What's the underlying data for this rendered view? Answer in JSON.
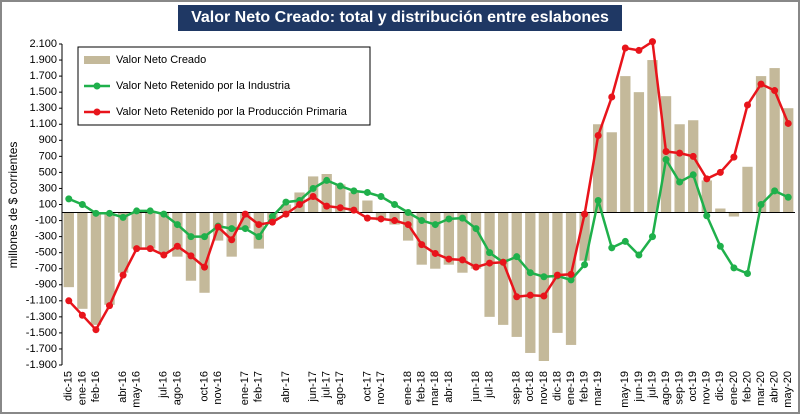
{
  "chart_data": {
    "type": "combo",
    "title": "Valor Neto Creado: total y distribución entre eslabones",
    "y_label": "millones de $ corrientes",
    "categories": [
      "dic-15",
      "ene-16",
      "feb-16",
      null,
      "abr-16",
      "may-16",
      null,
      "jul-16",
      "ago-16",
      null,
      "oct-16",
      "nov-16",
      null,
      "ene-17",
      "feb-17",
      null,
      "abr-17",
      null,
      "jun-17",
      "jul-17",
      "ago-17",
      null,
      "oct-17",
      "nov-17",
      null,
      "ene-18",
      "feb-18",
      "mar-18",
      "abr-18",
      null,
      "jun-18",
      "jul-18",
      null,
      "sep-18",
      "oct-18",
      "nov-18",
      "dic-18",
      "ene-19",
      "feb-19",
      "mar-19",
      null,
      "may-19",
      "jun-19",
      "jul-19",
      "ago-19",
      "sep-19",
      "oct-19",
      "nov-19",
      "dic-19",
      "ene-20",
      "feb-20",
      "mar-20",
      "abr-20",
      "may-20"
    ],
    "series": [
      {
        "name": "Valor Neto Creado",
        "type": "bar",
        "color": "#c4b99a",
        "values": [
          -930,
          -1200,
          -1400,
          -1150,
          -750,
          -450,
          -450,
          -500,
          -550,
          -850,
          -1000,
          -350,
          -550,
          -200,
          -450,
          -100,
          100,
          250,
          450,
          480,
          350,
          250,
          150,
          -100,
          -150,
          -350,
          -650,
          -700,
          -650,
          -750,
          -700,
          -1300,
          -1400,
          -1550,
          -1750,
          -1850,
          -1500,
          -1650,
          -600,
          1100,
          1000,
          1700,
          1500,
          1900,
          1450,
          1100,
          1150,
          400,
          50,
          -50,
          570,
          1700,
          1800,
          1300
        ]
      },
      {
        "name": "Valor Neto Retenido por la Industria",
        "type": "line",
        "color": "#1fb04b",
        "values": [
          170,
          100,
          -10,
          -10,
          -60,
          20,
          20,
          -20,
          -150,
          -300,
          -300,
          -170,
          -200,
          -200,
          -300,
          -50,
          130,
          150,
          300,
          400,
          330,
          270,
          250,
          200,
          100,
          0,
          -100,
          -150,
          -80,
          -70,
          -200,
          -500,
          -620,
          -550,
          -750,
          -800,
          -790,
          -840,
          -650,
          150,
          -440,
          -360,
          -530,
          -300,
          660,
          380,
          470,
          -40,
          -420,
          -690,
          -760,
          100,
          270,
          190
        ]
      },
      {
        "name": "Valor Neto Retenido por la Producción Primaria",
        "type": "line",
        "color": "#e8141b",
        "values": [
          -1100,
          -1280,
          -1460,
          -1160,
          -780,
          -450,
          -450,
          -530,
          -420,
          -540,
          -680,
          -180,
          -340,
          -20,
          -150,
          -120,
          -20,
          100,
          200,
          80,
          60,
          30,
          -70,
          -80,
          -100,
          -150,
          -400,
          -510,
          -580,
          -590,
          -680,
          -630,
          -620,
          -1050,
          -1030,
          -1040,
          -780,
          -770,
          -20,
          960,
          1440,
          2050,
          2020,
          2130,
          760,
          740,
          700,
          420,
          500,
          690,
          1340,
          1600,
          1520,
          1110
        ]
      }
    ],
    "ylim": [
      -1900,
      2100
    ],
    "yticks": [
      {
        "value": -1900,
        "label": "-1.900"
      },
      {
        "value": -1700,
        "label": "-1.700"
      },
      {
        "value": -1500,
        "label": "-1.500"
      },
      {
        "value": -1300,
        "label": "-1.300"
      },
      {
        "value": -1100,
        "label": "-1.100"
      },
      -900,
      -700,
      -500,
      -300,
      -100,
      100,
      300,
      500,
      700,
      900,
      {
        "value": 1100,
        "label": "1.100"
      },
      {
        "value": 1300,
        "label": "1.300"
      },
      {
        "value": 1500,
        "label": "1.500"
      },
      {
        "value": 1700,
        "label": "1.700"
      },
      {
        "value": 1900,
        "label": "1.900"
      },
      {
        "value": 2100,
        "label": "2.100"
      }
    ],
    "legend": "upper left"
  }
}
